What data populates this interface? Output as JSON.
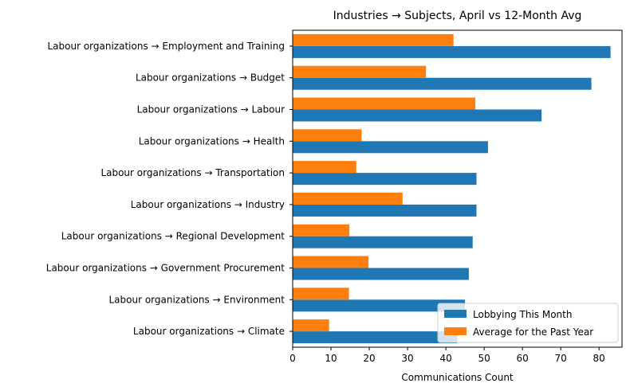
{
  "chart_data": {
    "type": "bar",
    "orientation": "horizontal",
    "title": "Industries → Subjects, April vs 12-Month Avg",
    "xlabel": "Communications Count",
    "ylabel": "",
    "xlim": [
      0,
      86
    ],
    "xticks": [
      "0",
      "10",
      "20",
      "30",
      "40",
      "50",
      "60",
      "70",
      "80"
    ],
    "categories": [
      "Labour organizations → Employment and Training",
      "Labour organizations → Budget",
      "Labour organizations → Labour",
      "Labour organizations → Health",
      "Labour organizations → Transportation",
      "Labour organizations → Industry",
      "Labour organizations → Regional Development",
      "Labour organizations → Government Procurement",
      "Labour organizations → Environment",
      "Labour organizations → Climate"
    ],
    "series": [
      {
        "name": "Lobbying This Month",
        "color": "#1f77b4",
        "values": [
          83,
          78,
          65,
          51,
          48,
          48,
          47,
          46,
          45,
          43
        ]
      },
      {
        "name": "Average for the Past Year",
        "color": "#ff7f0e",
        "values": [
          42,
          34.8,
          47.7,
          18,
          16.6,
          28.7,
          14.8,
          19.8,
          14.7,
          9.5
        ]
      }
    ],
    "legend": "lower-right",
    "grid": false
  }
}
